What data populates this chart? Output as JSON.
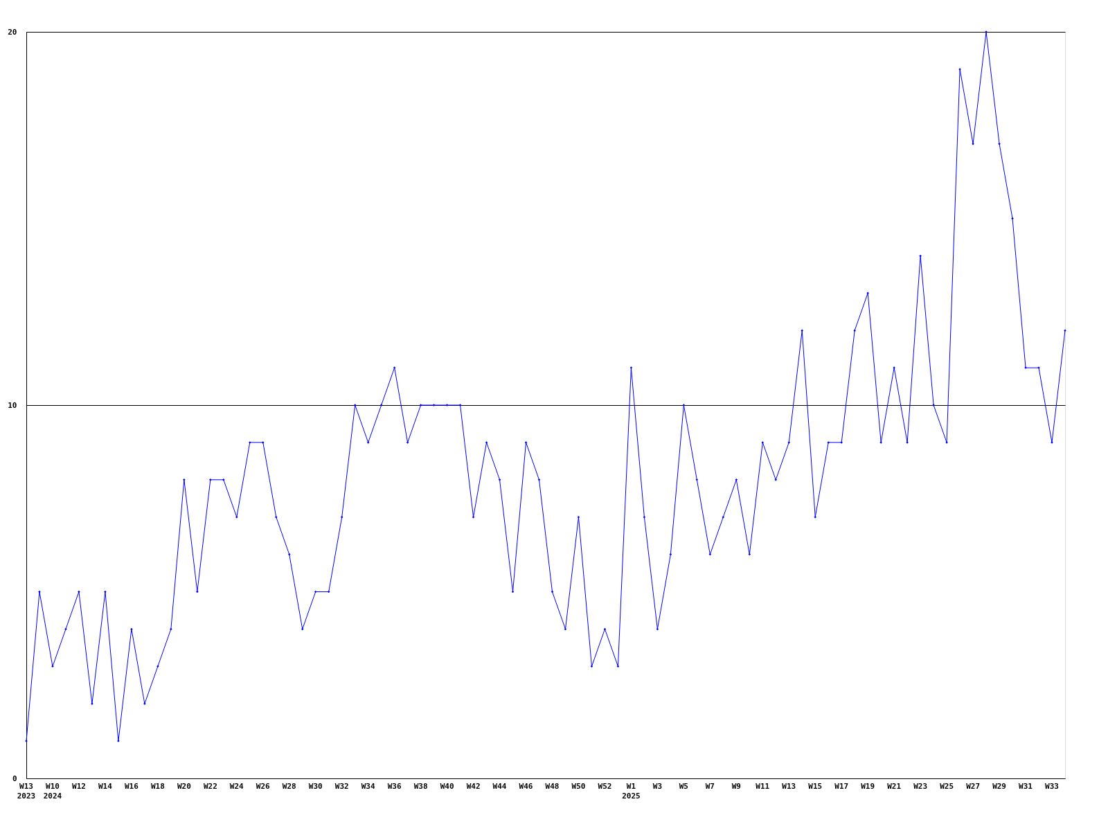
{
  "chart_data": {
    "type": "line",
    "categories": [
      "W13\n2023",
      null,
      "W10\n2024",
      null,
      "W12",
      null,
      "W14",
      null,
      "W16",
      null,
      "W18",
      null,
      "W20",
      null,
      "W22",
      null,
      "W24",
      null,
      "W26",
      null,
      "W28",
      null,
      "W30",
      null,
      "W32",
      null,
      "W34",
      null,
      "W36",
      null,
      "W38",
      null,
      "W40",
      null,
      "W42",
      null,
      "W44",
      null,
      "W46",
      null,
      "W48",
      null,
      "W50",
      null,
      "W52",
      null,
      "W1\n2025",
      null,
      "W3",
      null,
      "W5",
      null,
      "W7",
      null,
      "W9",
      null,
      "W11",
      null,
      "W13",
      null,
      "W15",
      null,
      "W17",
      null,
      "W19",
      null,
      "W21",
      null,
      "W23",
      null,
      "W25",
      null,
      "W27",
      null,
      "W29",
      null,
      "W31",
      null,
      "W33",
      null
    ],
    "series": [
      {
        "color": "#0000ff",
        "values": [
          1,
          5,
          3,
          4,
          5,
          2,
          5,
          1,
          4,
          2,
          3,
          4,
          8,
          5,
          8,
          8,
          7,
          9,
          9,
          7,
          6,
          4,
          5,
          5,
          7,
          10,
          9,
          10,
          11,
          9,
          10,
          10,
          10,
          10,
          7,
          9,
          8,
          5,
          9,
          8,
          5,
          4,
          7,
          3,
          4,
          3,
          11,
          7,
          4,
          6,
          10,
          8,
          6,
          7,
          8,
          6,
          9,
          8,
          9,
          12,
          7,
          9,
          9,
          12,
          13,
          9,
          11,
          9,
          14,
          10,
          9,
          19,
          17,
          20,
          17,
          15,
          11,
          11,
          9,
          12
        ]
      }
    ],
    "ylim": [
      0,
      20
    ],
    "yticks": [
      0,
      10,
      20
    ],
    "grid": "y",
    "marker": "diamond",
    "line_style": "solid"
  }
}
